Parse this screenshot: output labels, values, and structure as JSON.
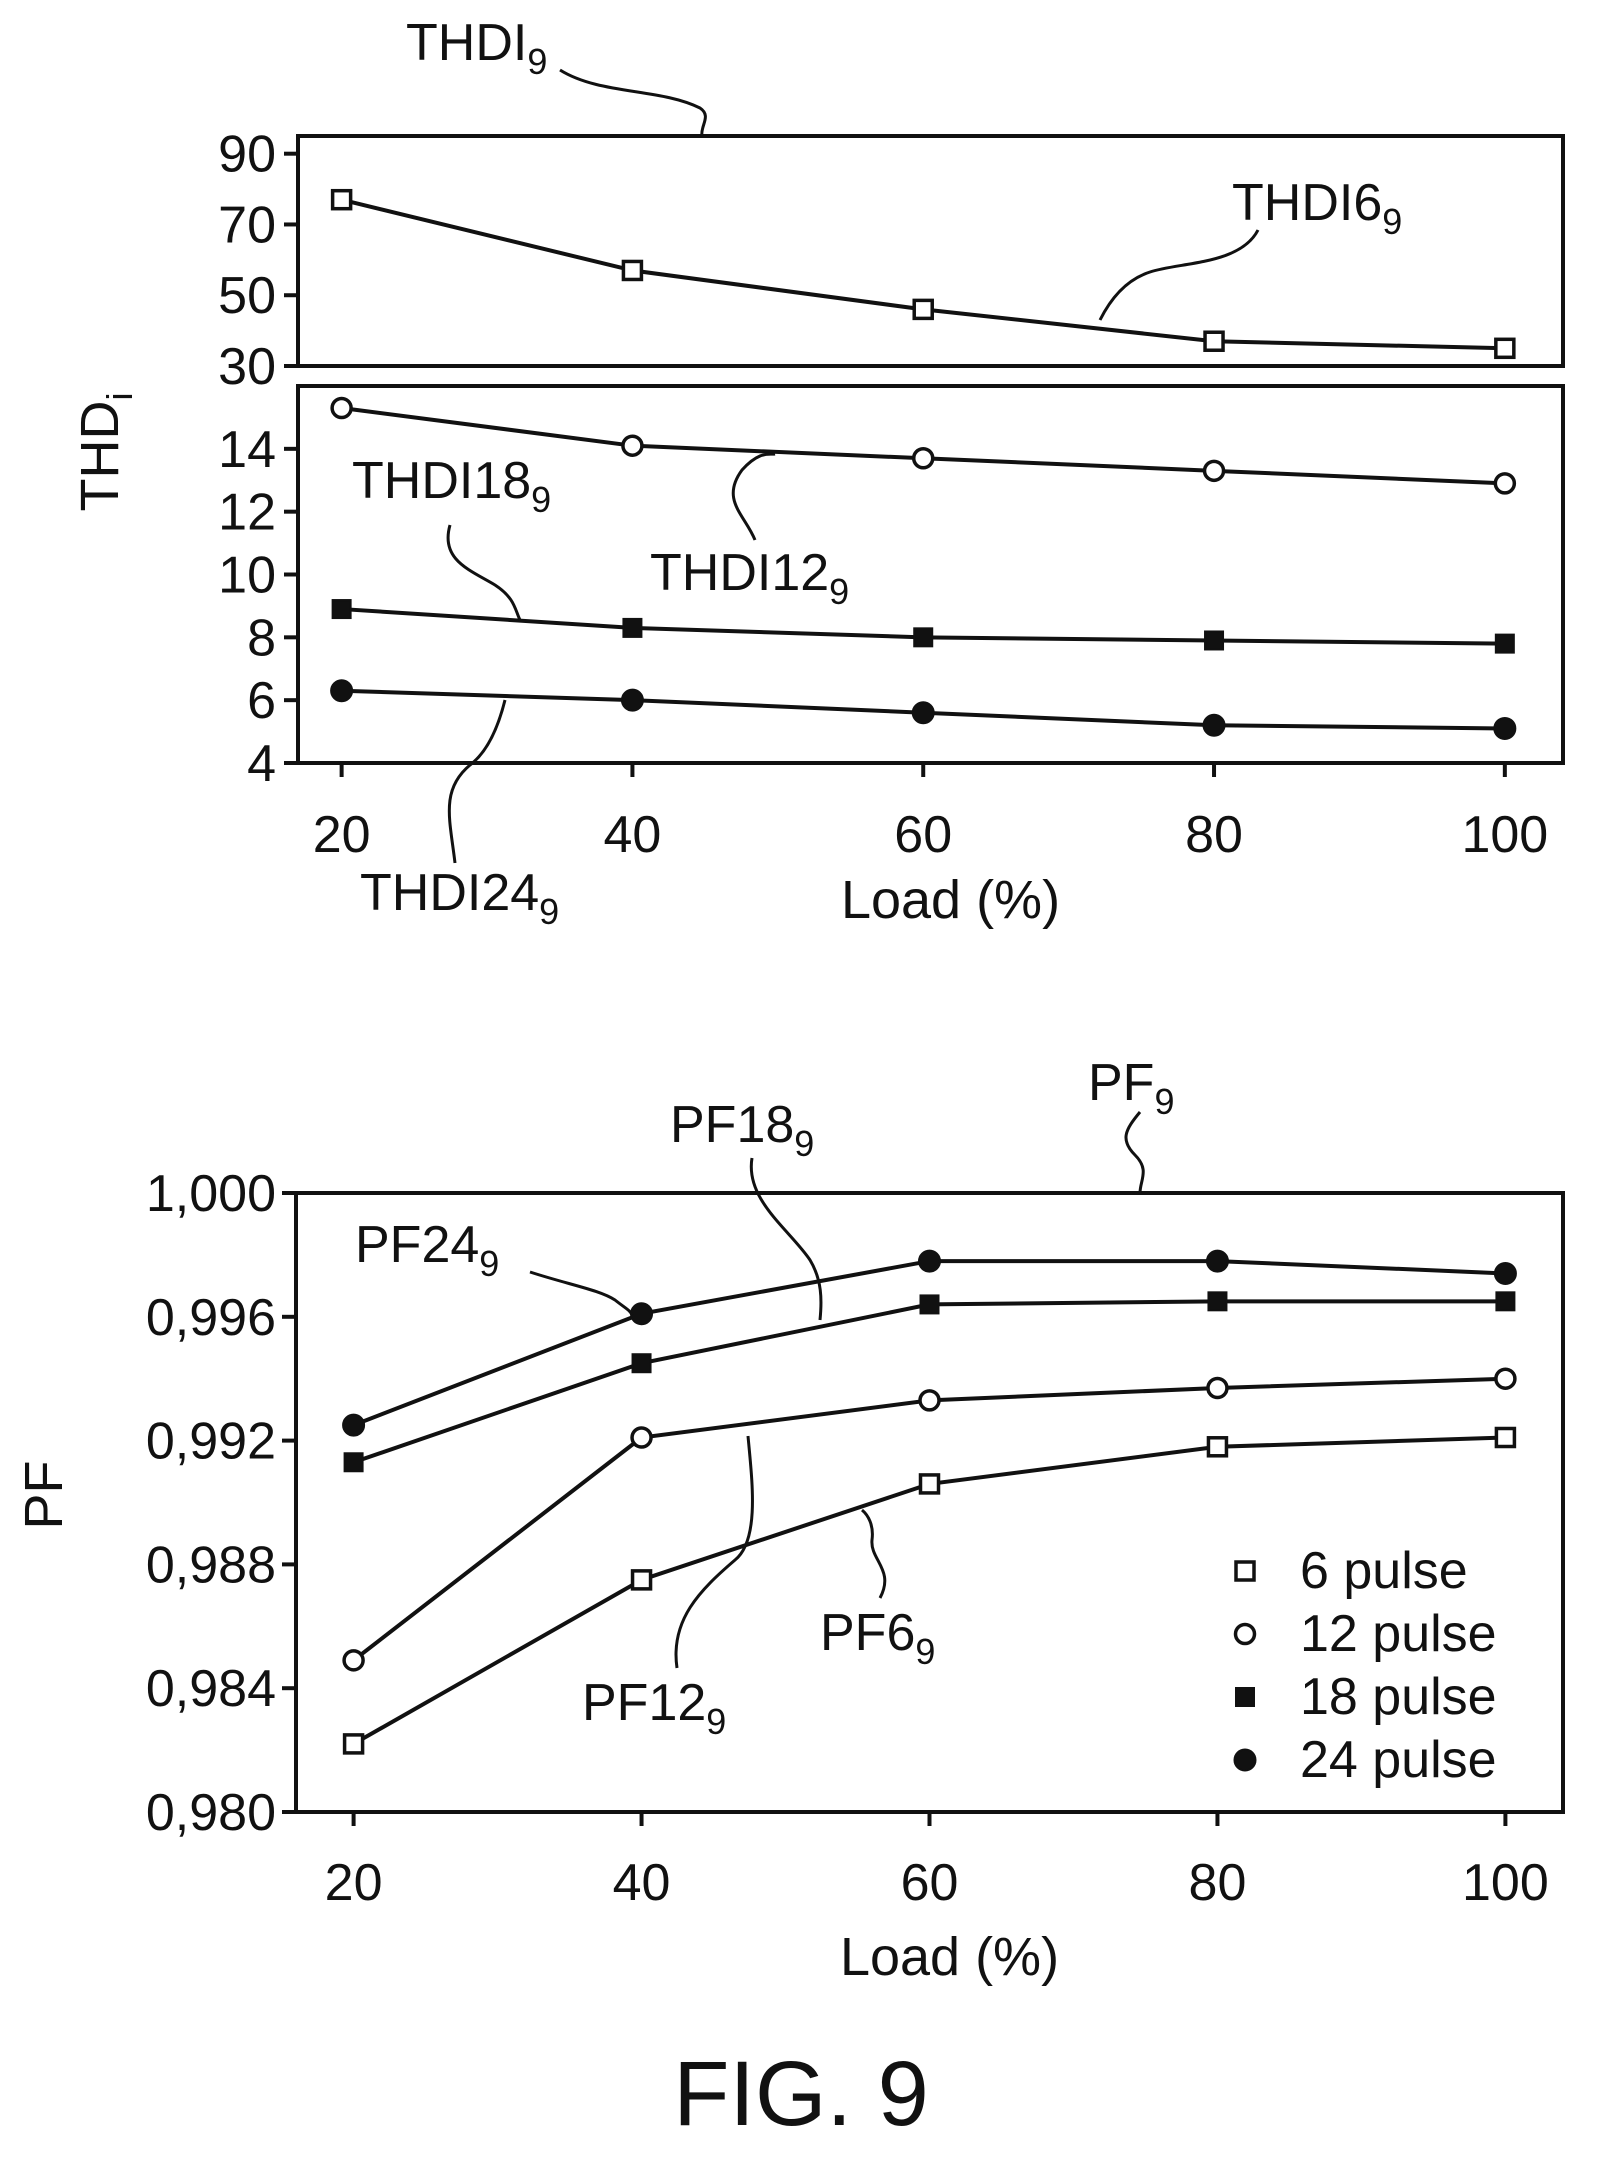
{
  "figure": {
    "caption": "FIG. 9"
  },
  "chart_data": [
    {
      "type": "line",
      "id": "thd",
      "title": "",
      "ylabel_main": "THD",
      "ylabel_sub": "i",
      "xlabel": "Load (%)",
      "x": [
        20,
        40,
        60,
        80,
        100
      ],
      "x_ticks": [
        "20",
        "40",
        "60",
        "80",
        "100"
      ],
      "panels": [
        {
          "name": "upper",
          "ylim": [
            30,
            95
          ],
          "y_ticks": [
            30,
            50,
            70,
            90
          ],
          "y_tick_labels": [
            "30",
            "50",
            "70",
            "90"
          ],
          "label": {
            "main": "THDI",
            "sub": "9"
          },
          "series": [
            {
              "name": "6 pulse",
              "marker": "square-open",
              "values": [
                77,
                57,
                46,
                37,
                35
              ],
              "label": {
                "main": "THDI6",
                "sub": "9"
              }
            }
          ]
        },
        {
          "name": "lower",
          "ylim": [
            4,
            16
          ],
          "y_ticks": [
            4,
            6,
            8,
            10,
            12,
            14
          ],
          "y_tick_labels": [
            "4",
            "6",
            "8",
            "10",
            "12",
            "14"
          ],
          "series": [
            {
              "name": "12 pulse",
              "marker": "circle-open",
              "values": [
                15.3,
                14.1,
                13.7,
                13.3,
                12.9
              ],
              "label": {
                "main": "THDI12",
                "sub": "9"
              }
            },
            {
              "name": "18 pulse",
              "marker": "square-filled",
              "values": [
                8.9,
                8.3,
                8.0,
                7.9,
                7.8
              ],
              "label": {
                "main": "THDI18",
                "sub": "9"
              }
            },
            {
              "name": "24 pulse",
              "marker": "circle-filled",
              "values": [
                6.3,
                6.0,
                5.6,
                5.2,
                5.1
              ],
              "label": {
                "main": "THDI24",
                "sub": "9"
              }
            }
          ]
        }
      ]
    },
    {
      "type": "line",
      "id": "pf",
      "title": "",
      "ylabel": "PF",
      "xlabel": "Load (%)",
      "label": {
        "main": "PF",
        "sub": "9"
      },
      "x": [
        20,
        40,
        60,
        80,
        100
      ],
      "x_ticks": [
        "20",
        "40",
        "60",
        "80",
        "100"
      ],
      "ylim": [
        0.98,
        1.0
      ],
      "y_ticks": [
        0.98,
        0.984,
        0.988,
        0.992,
        0.996,
        1.0
      ],
      "y_tick_labels": [
        "0,980",
        "0,984",
        "0,988",
        "0,992",
        "0,996",
        "1,000"
      ],
      "legend_position": "bottom-right",
      "series": [
        {
          "name": "6 pulse",
          "marker": "square-open",
          "values": [
            0.9822,
            0.9875,
            0.9906,
            0.9918,
            0.9921
          ],
          "label": {
            "main": "PF6",
            "sub": "9"
          }
        },
        {
          "name": "12 pulse",
          "marker": "circle-open",
          "values": [
            0.9849,
            0.9921,
            0.9933,
            0.9937,
            0.994
          ],
          "label": {
            "main": "PF12",
            "sub": "9"
          }
        },
        {
          "name": "18 pulse",
          "marker": "square-filled",
          "values": [
            0.9913,
            0.9945,
            0.9964,
            0.9965,
            0.9965
          ],
          "label": {
            "main": "PF18",
            "sub": "9"
          }
        },
        {
          "name": "24 pulse",
          "marker": "circle-filled",
          "values": [
            0.9925,
            0.9961,
            0.9978,
            0.9978,
            0.9974
          ],
          "label": {
            "main": "PF24",
            "sub": "9"
          }
        }
      ]
    }
  ]
}
